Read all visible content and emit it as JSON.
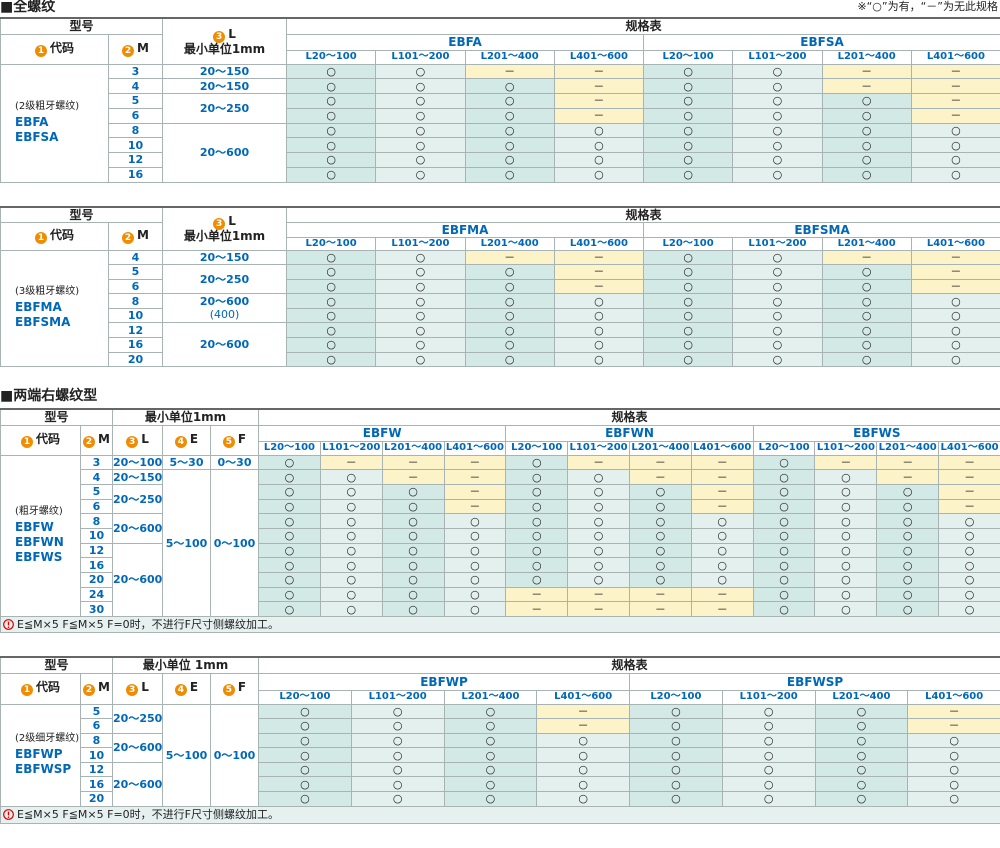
{
  "sections": [
    {
      "heading": "■全螺纹",
      "note": "※“○”为有，“－”为无此规格",
      "tables": [
        {
          "model": "型号",
          "spec": "规格表",
          "unit": "最小单位1mm",
          "fields": [
            {
              "num": "1",
              "label": "代码"
            },
            {
              "num": "2",
              "label": "M"
            },
            {
              "num": "3",
              "label": "L"
            }
          ],
          "groups": [
            {
              "name": "EBFA",
              "columns": [
                "L20～100",
                "L101～200",
                "L201～400",
                "L401～600"
              ]
            },
            {
              "name": "EBFSA",
              "columns": [
                "L20～100",
                "L101～200",
                "L201～400",
                "L401～600"
              ]
            }
          ],
          "code_note": "(2级粗牙螺纹)",
          "codes": [
            "EBFA",
            "EBFSA"
          ],
          "rows": [
            {
              "m": "3",
              "l": "20～150",
              "cells": [
                "○",
                "○",
                "－",
                "－",
                "○",
                "○",
                "－",
                "－"
              ]
            },
            {
              "m": "4",
              "l": "20～150",
              "cells": [
                "○",
                "○",
                "○",
                "－",
                "○",
                "○",
                "－",
                "－"
              ]
            },
            {
              "m": "5",
              "l": "20～250",
              "cells": [
                "○",
                "○",
                "○",
                "－",
                "○",
                "○",
                "○",
                "－"
              ]
            },
            {
              "m": "6",
              "l": null,
              "cells": [
                "○",
                "○",
                "○",
                "－",
                "○",
                "○",
                "○",
                "－"
              ]
            },
            {
              "m": "8",
              "l": "20～600",
              "cells": [
                "○",
                "○",
                "○",
                "○",
                "○",
                "○",
                "○",
                "○"
              ]
            },
            {
              "m": "10",
              "l": null,
              "cells": [
                "○",
                "○",
                "○",
                "○",
                "○",
                "○",
                "○",
                "○"
              ]
            },
            {
              "m": "12",
              "l": null,
              "cells": [
                "○",
                "○",
                "○",
                "○",
                "○",
                "○",
                "○",
                "○"
              ]
            },
            {
              "m": "16",
              "l": null,
              "cells": [
                "○",
                "○",
                "○",
                "○",
                "○",
                "○",
                "○",
                "○"
              ]
            }
          ]
        },
        {
          "model": "型号",
          "spec": "规格表",
          "unit": "最小单位1mm",
          "fields": [
            {
              "num": "1",
              "label": "代码"
            },
            {
              "num": "2",
              "label": "M"
            },
            {
              "num": "3",
              "label": "L"
            }
          ],
          "groups": [
            {
              "name": "EBFMA",
              "columns": [
                "L20～100",
                "L101～200",
                "L201～400",
                "L401～600"
              ]
            },
            {
              "name": "EBFSMA",
              "columns": [
                "L20～100",
                "L101～200",
                "L201～400",
                "L401～600"
              ]
            }
          ],
          "code_note": "(3级粗牙螺纹)",
          "codes": [
            "EBFMA",
            "EBFSMA"
          ],
          "rows": [
            {
              "m": "4",
              "l": "20～150",
              "cells": [
                "○",
                "○",
                "－",
                "－",
                "○",
                "○",
                "－",
                "－"
              ]
            },
            {
              "m": "5",
              "l": "20～250",
              "cells": [
                "○",
                "○",
                "○",
                "－",
                "○",
                "○",
                "○",
                "－"
              ]
            },
            {
              "m": "6",
              "l": null,
              "cells": [
                "○",
                "○",
                "○",
                "－",
                "○",
                "○",
                "○",
                "－"
              ]
            },
            {
              "m": "8",
              "l": "20～600",
              "l_sub": "(400)",
              "cells": [
                "○",
                "○",
                "○",
                "○",
                "○",
                "○",
                "○",
                "○"
              ]
            },
            {
              "m": "10",
              "l": null,
              "cells": [
                "○",
                "○",
                "○",
                "○",
                "○",
                "○",
                "○",
                "○"
              ]
            },
            {
              "m": "12",
              "l": "20～600",
              "cells": [
                "○",
                "○",
                "○",
                "○",
                "○",
                "○",
                "○",
                "○"
              ]
            },
            {
              "m": "16",
              "l": null,
              "cells": [
                "○",
                "○",
                "○",
                "○",
                "○",
                "○",
                "○",
                "○"
              ]
            },
            {
              "m": "20",
              "l": null,
              "cells": [
                "○",
                "○",
                "○",
                "○",
                "○",
                "○",
                "○",
                "○"
              ]
            }
          ]
        }
      ]
    },
    {
      "heading": "■两端右螺纹型",
      "tables": [
        {
          "model": "型号",
          "spec": "规格表",
          "unit": "最小单位1mm",
          "fields": [
            {
              "num": "1",
              "label": "代码"
            },
            {
              "num": "2",
              "label": "M"
            },
            {
              "num": "3",
              "label": "L"
            },
            {
              "num": "4",
              "label": "E"
            },
            {
              "num": "5",
              "label": "F"
            }
          ],
          "groups": [
            {
              "name": "EBFW",
              "columns": [
                "L20～100",
                "L101～200",
                "L201～400",
                "L401～600"
              ]
            },
            {
              "name": "EBFWN",
              "columns": [
                "L20～100",
                "L101～200",
                "L201～400",
                "L401～600"
              ]
            },
            {
              "name": "EBFWS",
              "columns": [
                "L20～100",
                "L101～200",
                "L201～400",
                "L401～600"
              ]
            }
          ],
          "code_note": "(粗牙螺纹)",
          "codes": [
            "EBFW",
            "EBFWN",
            "EBFWS"
          ],
          "rows": [
            {
              "m": "3",
              "l": "20～100",
              "e": "5～30",
              "f": "0～30",
              "cells": [
                "○",
                "－",
                "－",
                "－",
                "○",
                "－",
                "－",
                "－",
                "○",
                "－",
                "－",
                "－"
              ]
            },
            {
              "m": "4",
              "l": "20～150",
              "e": "5～100",
              "f": "0～100",
              "cells": [
                "○",
                "○",
                "－",
                "－",
                "○",
                "○",
                "－",
                "－",
                "○",
                "○",
                "－",
                "－"
              ]
            },
            {
              "m": "5",
              "l": "20～250",
              "e": null,
              "f": null,
              "cells": [
                "○",
                "○",
                "○",
                "－",
                "○",
                "○",
                "○",
                "－",
                "○",
                "○",
                "○",
                "－"
              ]
            },
            {
              "m": "6",
              "l": null,
              "e": null,
              "f": null,
              "cells": [
                "○",
                "○",
                "○",
                "－",
                "○",
                "○",
                "○",
                "－",
                "○",
                "○",
                "○",
                "－"
              ]
            },
            {
              "m": "8",
              "l": "20～600",
              "e": null,
              "f": null,
              "cells": [
                "○",
                "○",
                "○",
                "○",
                "○",
                "○",
                "○",
                "○",
                "○",
                "○",
                "○",
                "○"
              ]
            },
            {
              "m": "10",
              "l": null,
              "e": null,
              "f": null,
              "cells": [
                "○",
                "○",
                "○",
                "○",
                "○",
                "○",
                "○",
                "○",
                "○",
                "○",
                "○",
                "○"
              ]
            },
            {
              "m": "12",
              "l": "20～600",
              "e": null,
              "f": null,
              "cells": [
                "○",
                "○",
                "○",
                "○",
                "○",
                "○",
                "○",
                "○",
                "○",
                "○",
                "○",
                "○"
              ]
            },
            {
              "m": "16",
              "l": null,
              "e": null,
              "f": null,
              "cells": [
                "○",
                "○",
                "○",
                "○",
                "○",
                "○",
                "○",
                "○",
                "○",
                "○",
                "○",
                "○"
              ]
            },
            {
              "m": "20",
              "l": null,
              "e": null,
              "f": null,
              "cells": [
                "○",
                "○",
                "○",
                "○",
                "○",
                "○",
                "○",
                "○",
                "○",
                "○",
                "○",
                "○"
              ]
            },
            {
              "m": "24",
              "l": null,
              "e": null,
              "f": null,
              "cells": [
                "○",
                "○",
                "○",
                "○",
                "－",
                "－",
                "－",
                "－",
                "○",
                "○",
                "○",
                "○"
              ]
            },
            {
              "m": "30",
              "l": null,
              "e": null,
              "f": null,
              "cells": [
                "○",
                "○",
                "○",
                "○",
                "－",
                "－",
                "－",
                "－",
                "○",
                "○",
                "○",
                "○"
              ]
            }
          ],
          "footnote": "E≦M×5 F≦M×5 F=0时，不进行F尺寸侧螺纹加工。"
        },
        {
          "model": "型号",
          "spec": "规格表",
          "unit": "最小单位 1mm",
          "fields": [
            {
              "num": "1",
              "label": "代码"
            },
            {
              "num": "2",
              "label": "M"
            },
            {
              "num": "3",
              "label": "L"
            },
            {
              "num": "4",
              "label": "E"
            },
            {
              "num": "5",
              "label": "F"
            }
          ],
          "groups": [
            {
              "name": "EBFWP",
              "columns": [
                "L20～100",
                "L101～200",
                "L201～400",
                "L401～600"
              ]
            },
            {
              "name": "EBFWSP",
              "columns": [
                "L20～100",
                "L101～200",
                "L201～400",
                "L401～600"
              ]
            }
          ],
          "code_note": "(2级细牙螺纹)",
          "codes": [
            "EBFWP",
            "EBFWSP"
          ],
          "rows": [
            {
              "m": "5",
              "l": "20～250",
              "e": "5～100",
              "f": "0～100",
              "cells": [
                "○",
                "○",
                "○",
                "－",
                "○",
                "○",
                "○",
                "－"
              ]
            },
            {
              "m": "6",
              "l": null,
              "e": null,
              "f": null,
              "cells": [
                "○",
                "○",
                "○",
                "－",
                "○",
                "○",
                "○",
                "－"
              ]
            },
            {
              "m": "8",
              "l": "20～600",
              "e": null,
              "f": null,
              "cells": [
                "○",
                "○",
                "○",
                "○",
                "○",
                "○",
                "○",
                "○"
              ]
            },
            {
              "m": "10",
              "l": null,
              "e": null,
              "f": null,
              "cells": [
                "○",
                "○",
                "○",
                "○",
                "○",
                "○",
                "○",
                "○"
              ]
            },
            {
              "m": "12",
              "l": "20～600",
              "e": null,
              "f": null,
              "cells": [
                "○",
                "○",
                "○",
                "○",
                "○",
                "○",
                "○",
                "○"
              ]
            },
            {
              "m": "16",
              "l": null,
              "e": null,
              "f": null,
              "cells": [
                "○",
                "○",
                "○",
                "○",
                "○",
                "○",
                "○",
                "○"
              ]
            },
            {
              "m": "20",
              "l": null,
              "e": null,
              "f": null,
              "cells": [
                "○",
                "○",
                "○",
                "○",
                "○",
                "○",
                "○",
                "○"
              ]
            }
          ],
          "footnote": "E≦M×5 F≦M×5 F=0时，不进行F尺寸侧螺纹加工。"
        }
      ]
    }
  ]
}
